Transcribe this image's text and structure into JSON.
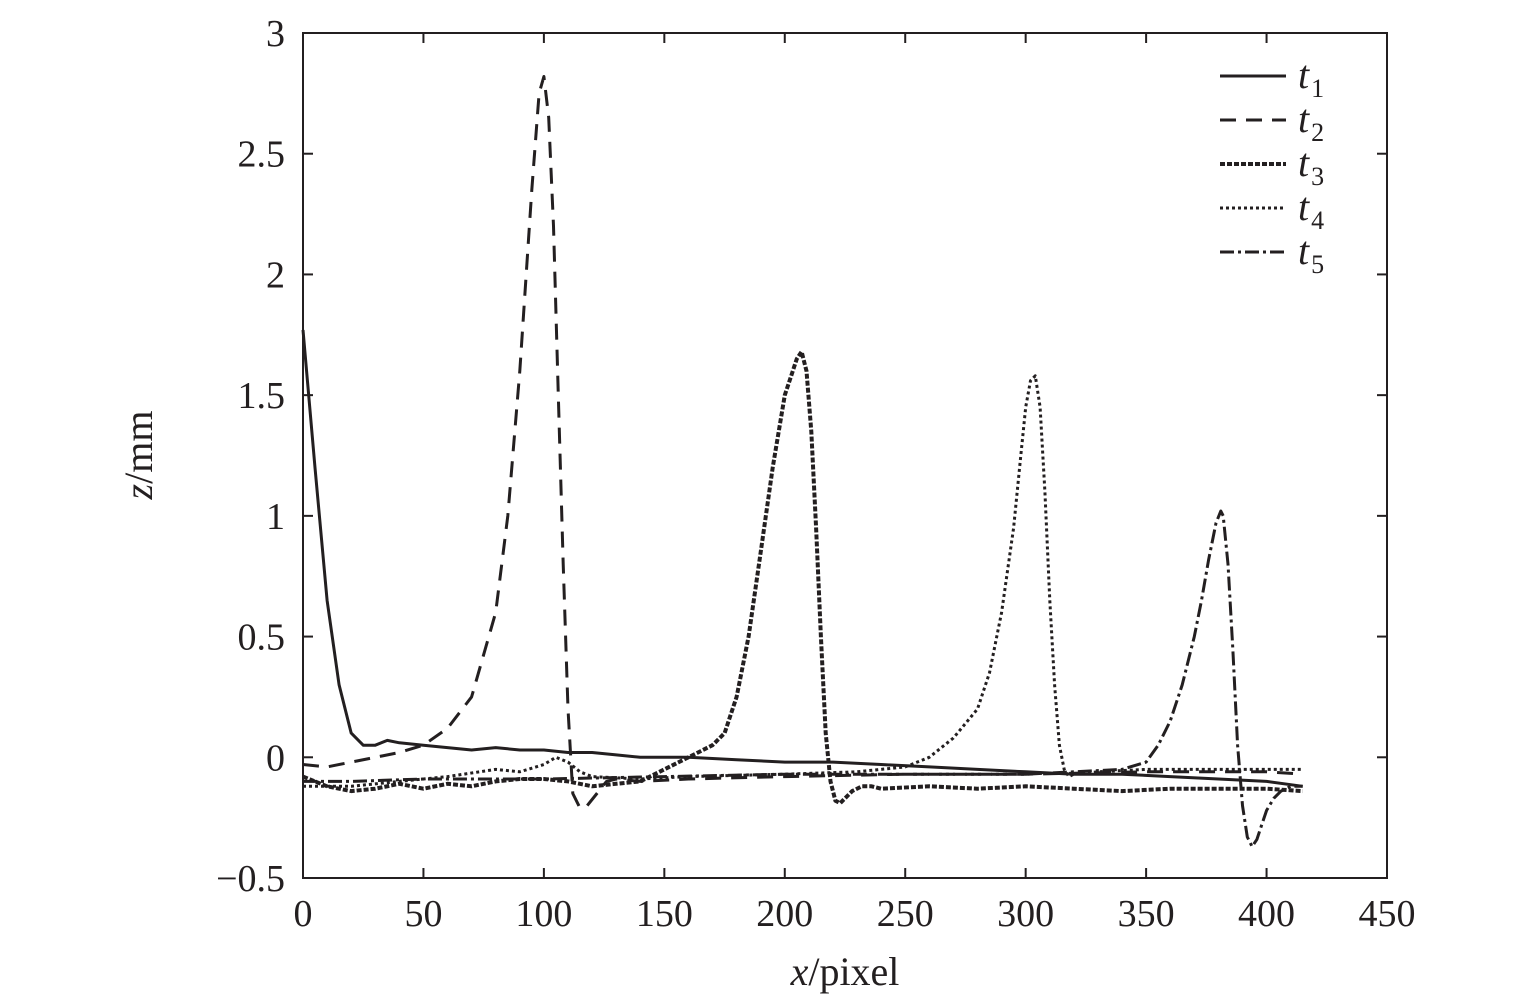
{
  "chart_data": {
    "type": "line",
    "xlabel_var": "x",
    "xlabel_unit": "/pixel",
    "ylabel_var": "z",
    "ylabel_unit": "/mm",
    "xlim": [
      0,
      450
    ],
    "ylim": [
      -0.5,
      3
    ],
    "xticks": [
      0,
      50,
      100,
      150,
      200,
      250,
      300,
      350,
      400,
      450
    ],
    "yticks": [
      -0.5,
      0,
      0.5,
      1,
      1.5,
      2,
      2.5,
      3
    ],
    "ytick_labels": [
      "−0.5",
      "0",
      "0.5",
      "1",
      "1.5",
      "2",
      "2.5",
      "3"
    ],
    "grid": false,
    "legend_position": "top-right",
    "series": [
      {
        "name": "t1",
        "base": "t",
        "sub": "1",
        "dash": "",
        "width": 3,
        "x": [
          0,
          5,
          10,
          15,
          20,
          25,
          30,
          35,
          40,
          50,
          60,
          70,
          80,
          90,
          100,
          110,
          120,
          130,
          140,
          150,
          160,
          180,
          200,
          220,
          240,
          260,
          280,
          300,
          320,
          340,
          360,
          380,
          400,
          415
        ],
        "y": [
          1.77,
          1.2,
          0.65,
          0.3,
          0.1,
          0.05,
          0.05,
          0.07,
          0.06,
          0.05,
          0.04,
          0.03,
          0.04,
          0.03,
          0.03,
          0.02,
          0.02,
          0.01,
          0.0,
          0.0,
          0.0,
          -0.01,
          -0.02,
          -0.02,
          -0.03,
          -0.04,
          -0.05,
          -0.06,
          -0.07,
          -0.07,
          -0.08,
          -0.09,
          -0.1,
          -0.12
        ]
      },
      {
        "name": "t2",
        "base": "t",
        "sub": "2",
        "dash": "16,10",
        "width": 3,
        "x": [
          0,
          10,
          20,
          30,
          40,
          50,
          60,
          70,
          80,
          85,
          90,
          95,
          98,
          100,
          102,
          104,
          106,
          108,
          110,
          112,
          115,
          118,
          122,
          126,
          130,
          140,
          160,
          200,
          250,
          300,
          350,
          400,
          415
        ],
        "y": [
          -0.03,
          -0.04,
          -0.02,
          0.0,
          0.02,
          0.05,
          0.12,
          0.25,
          0.6,
          1.0,
          1.6,
          2.35,
          2.75,
          2.82,
          2.65,
          2.2,
          1.5,
          0.8,
          0.2,
          -0.15,
          -0.21,
          -0.2,
          -0.15,
          -0.1,
          -0.09,
          -0.1,
          -0.09,
          -0.08,
          -0.07,
          -0.07,
          -0.06,
          -0.06,
          -0.07
        ]
      },
      {
        "name": "t3",
        "base": "t",
        "sub": "3",
        "dash": "5,2",
        "width": 4,
        "x": [
          0,
          10,
          20,
          30,
          40,
          50,
          60,
          70,
          80,
          90,
          100,
          110,
          120,
          130,
          140,
          150,
          160,
          170,
          175,
          180,
          185,
          190,
          195,
          200,
          205,
          207,
          209,
          211,
          213,
          215,
          217,
          219,
          221,
          223,
          225,
          228,
          232,
          236,
          240,
          260,
          280,
          300,
          320,
          340,
          360,
          380,
          400,
          415
        ],
        "y": [
          -0.08,
          -0.12,
          -0.14,
          -0.13,
          -0.11,
          -0.13,
          -0.11,
          -0.12,
          -0.1,
          -0.09,
          -0.09,
          -0.1,
          -0.12,
          -0.11,
          -0.1,
          -0.05,
          0.0,
          0.05,
          0.1,
          0.25,
          0.5,
          0.85,
          1.2,
          1.5,
          1.65,
          1.68,
          1.6,
          1.35,
          0.95,
          0.5,
          0.1,
          -0.1,
          -0.18,
          -0.19,
          -0.17,
          -0.14,
          -0.12,
          -0.12,
          -0.13,
          -0.12,
          -0.13,
          -0.12,
          -0.13,
          -0.14,
          -0.13,
          -0.13,
          -0.13,
          -0.14
        ]
      },
      {
        "name": "t4",
        "base": "t",
        "sub": "4",
        "dash": "3,3",
        "width": 3,
        "x": [
          0,
          20,
          40,
          60,
          80,
          90,
          100,
          105,
          110,
          115,
          120,
          140,
          160,
          200,
          230,
          250,
          260,
          270,
          280,
          285,
          290,
          295,
          298,
          300,
          302,
          304,
          306,
          308,
          310,
          312,
          314,
          316,
          318,
          320,
          330,
          350,
          370,
          390,
          415
        ],
        "y": [
          -0.12,
          -0.12,
          -0.1,
          -0.08,
          -0.05,
          -0.06,
          -0.03,
          0.0,
          -0.02,
          -0.06,
          -0.08,
          -0.09,
          -0.08,
          -0.07,
          -0.06,
          -0.04,
          0.0,
          0.08,
          0.2,
          0.35,
          0.6,
          0.95,
          1.25,
          1.45,
          1.56,
          1.58,
          1.45,
          1.1,
          0.65,
          0.3,
          0.05,
          -0.05,
          -0.08,
          -0.07,
          -0.06,
          -0.05,
          -0.05,
          -0.05,
          -0.05
        ]
      },
      {
        "name": "t5",
        "base": "t",
        "sub": "5",
        "dash": "14,4,3,4",
        "width": 3,
        "x": [
          0,
          20,
          50,
          100,
          150,
          200,
          250,
          300,
          320,
          340,
          350,
          355,
          360,
          365,
          370,
          373,
          376,
          379,
          381,
          382,
          384,
          386,
          388,
          390,
          392,
          394,
          396,
          398,
          400,
          403,
          406,
          410,
          415
        ],
        "y": [
          -0.1,
          -0.1,
          -0.09,
          -0.09,
          -0.08,
          -0.07,
          -0.07,
          -0.07,
          -0.06,
          -0.05,
          -0.02,
          0.05,
          0.15,
          0.3,
          0.5,
          0.65,
          0.82,
          0.97,
          1.02,
          1.0,
          0.8,
          0.45,
          0.05,
          -0.2,
          -0.33,
          -0.37,
          -0.34,
          -0.28,
          -0.22,
          -0.17,
          -0.14,
          -0.12,
          -0.12
        ]
      }
    ]
  }
}
